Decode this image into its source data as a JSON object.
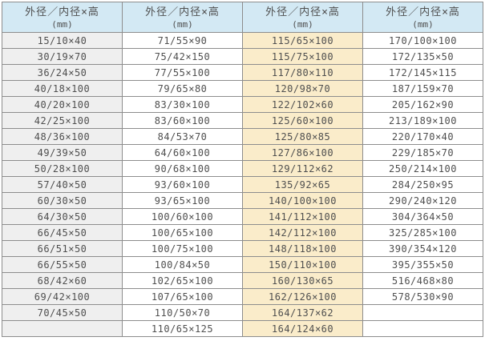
{
  "chart_data": {
    "type": "table",
    "column_headers": [
      {
        "title": "外径／内径×高",
        "unit": "(mm)"
      },
      {
        "title": "外径／内径×高",
        "unit": "(mm)"
      },
      {
        "title": "外径／内径×高",
        "unit": "(mm)"
      },
      {
        "title": "外径／内径×高",
        "unit": "(mm)"
      }
    ],
    "columns": [
      {
        "values": [
          "15/10×40",
          "30/19×70",
          "36/24×50",
          "40/18×100",
          "40/20×100",
          "42/25×100",
          "48/36×100",
          "49/39×50",
          "50/28×100",
          "57/40×50",
          "60/30×50",
          "64/30×50",
          "66/45×50",
          "66/51×50",
          "66/55×50",
          "68/42×60",
          "69/42×100",
          "70/45×50",
          ""
        ]
      },
      {
        "values": [
          "71/55×90",
          "75/42×150",
          "77/55×100",
          "79/65×80",
          "83/30×100",
          "83/60×100",
          "84/53×70",
          "64/60×100",
          "90/68×100",
          "93/60×100",
          "93/65×100",
          "100/60×100",
          "100/65×100",
          "100/75×100",
          "100/84×50",
          "102/65×100",
          "107/65×100",
          "110/50×70",
          "110/65×125"
        ]
      },
      {
        "values": [
          "115/65×100",
          "115/75×100",
          "117/80×110",
          "120/98×70",
          "122/102×60",
          "125/60×100",
          "125/80×85",
          "127/86×100",
          "129/112×62",
          "135/92×65",
          "140/100×100",
          "141/112×100",
          "142/112×100",
          "148/118×100",
          "150/110×100",
          "160/130×65",
          "162/126×100",
          "164/137×62",
          "164/124×60"
        ]
      },
      {
        "values": [
          "170/100×100",
          "172/135×50",
          "172/145×115",
          "187/159×70",
          "205/162×90",
          "213/189×100",
          "220/170×40",
          "229/185×70",
          "250/214×100",
          "284/250×95",
          "290/240×120",
          "304/364×50",
          "325/285×100",
          "390/354×120",
          "395/355×50",
          "516/468×80",
          "578/530×90",
          "",
          ""
        ]
      }
    ],
    "row_count": 19
  },
  "styles": {
    "header_bg": "#d3e9f4",
    "column_backgrounds": [
      "#efefef",
      "#ffffff",
      "#faecca",
      "#ffffff"
    ],
    "border_color": "#8d8d8d",
    "outer_border_color": "#7a7a7a",
    "text_color": "#4f4f4f"
  }
}
